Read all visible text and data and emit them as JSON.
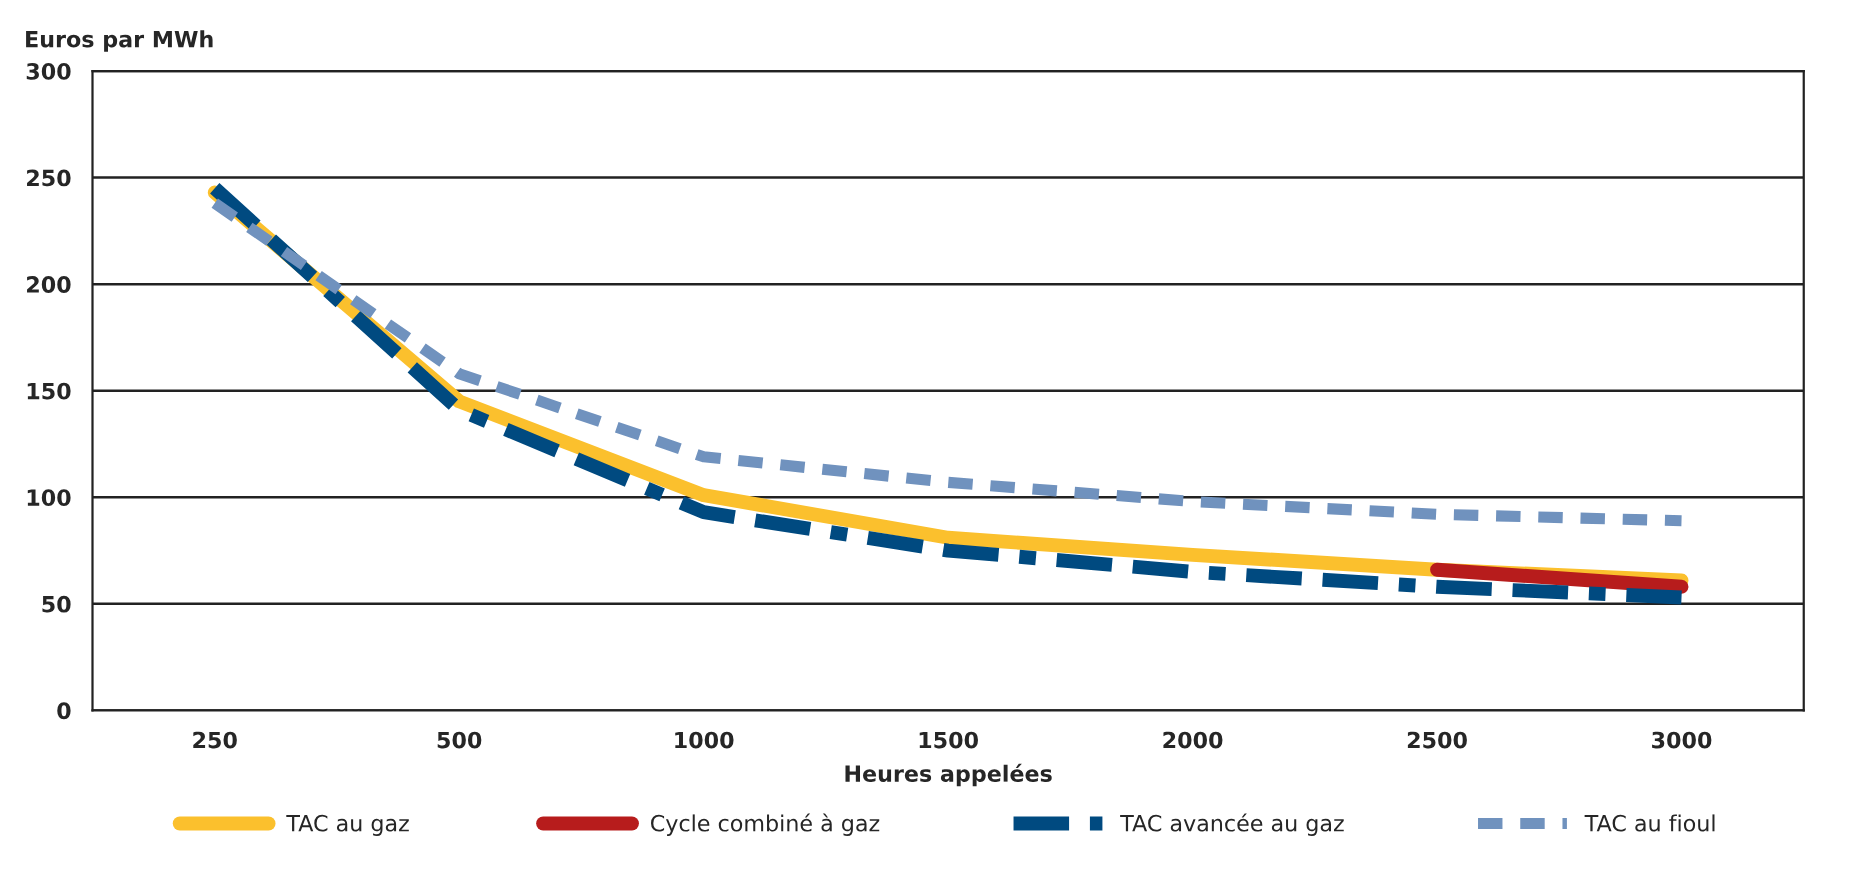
{
  "chart_data": {
    "type": "line",
    "ylabel": "Euros par MWh",
    "xlabel": "Heures appelées",
    "categories": [
      "250",
      "500",
      "1000",
      "1500",
      "2000",
      "2500",
      "3000"
    ],
    "ylim": [
      0,
      300
    ],
    "yticks": [
      0,
      50,
      100,
      150,
      200,
      250,
      300
    ],
    "grid": "y",
    "legend": "bottom",
    "marker": "none",
    "series": [
      {
        "name": "TAC au gaz",
        "color": "#fbc02d",
        "line_style": "solid",
        "values": [
          243,
          145,
          101,
          81,
          73,
          66,
          61
        ]
      },
      {
        "name": "Cycle combiné à gaz",
        "color": "#b71c1c",
        "line_style": "solid",
        "values": [
          null,
          null,
          null,
          null,
          null,
          66,
          58
        ]
      },
      {
        "name": "TAC avancée au gaz",
        "color": "#004a80",
        "line_style": "dashed",
        "values": [
          245,
          141,
          93,
          75,
          65,
          58,
          53
        ]
      },
      {
        "name": "TAC au fioul",
        "color": "#7092be",
        "line_style": "dotted",
        "values": [
          238,
          158,
          119,
          107,
          98,
          92,
          89
        ]
      }
    ]
  }
}
